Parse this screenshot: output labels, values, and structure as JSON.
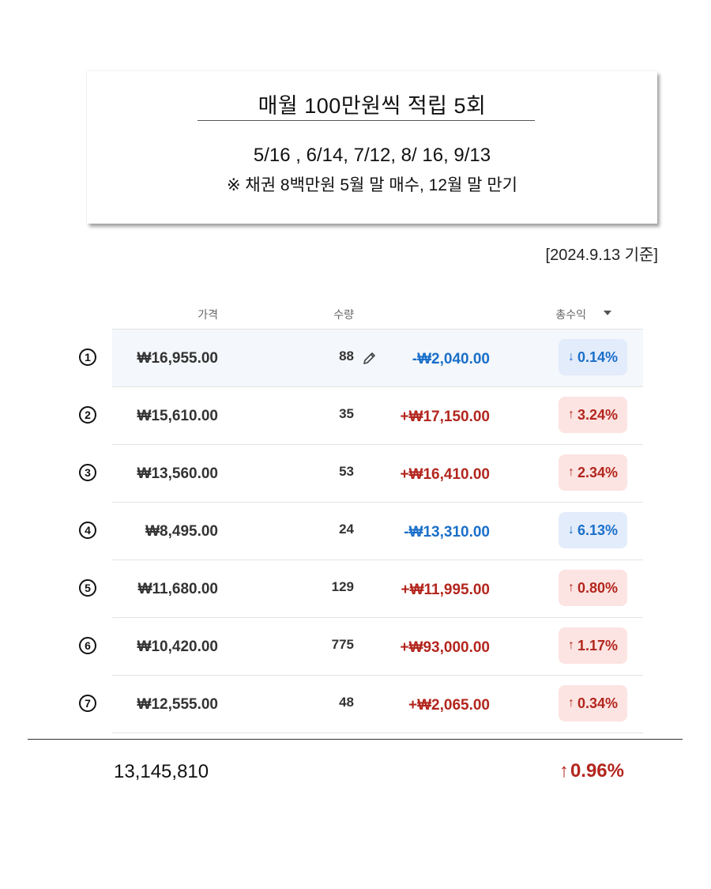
{
  "info": {
    "title": "매월 100만원씩 적립 5회",
    "dates": "5/16 , 6/14, 7/12, 8/ 16, 9/13",
    "note": "※ 채권 8백만원 5월 말 매수, 12월 말 만기"
  },
  "as_of": "[2024.9.13 기준]",
  "table": {
    "headers": {
      "price": "가격",
      "qty": "수량",
      "total_gain": "총수익"
    },
    "rows": [
      {
        "marker": "1",
        "price": "₩16,955.00",
        "qty": "88",
        "gain": "-₩2,040.00",
        "direction": "down",
        "pct": "0.14%",
        "editable": true
      },
      {
        "marker": "2",
        "price": "₩15,610.00",
        "qty": "35",
        "gain": "+₩17,150.00",
        "direction": "up",
        "pct": "3.24%"
      },
      {
        "marker": "3",
        "price": "₩13,560.00",
        "qty": "53",
        "gain": "+₩16,410.00",
        "direction": "up",
        "pct": "2.34%"
      },
      {
        "marker": "4",
        "price": "₩8,495.00",
        "qty": "24",
        "gain": "-₩13,310.00",
        "direction": "down",
        "pct": "6.13%"
      },
      {
        "marker": "5",
        "price": "₩11,680.00",
        "qty": "129",
        "gain": "+₩11,995.00",
        "direction": "up",
        "pct": "0.80%"
      },
      {
        "marker": "6",
        "price": "₩10,420.00",
        "qty": "775",
        "gain": "+₩93,000.00",
        "direction": "up",
        "pct": "1.17%"
      },
      {
        "marker": "7",
        "price": "₩12,555.00",
        "qty": "48",
        "gain": "+₩2,065.00",
        "direction": "up",
        "pct": "0.34%"
      }
    ]
  },
  "total": {
    "amount": "13,145,810",
    "pct": "0.96%",
    "direction": "up"
  },
  "colors": {
    "up": "#b3261e",
    "down": "#1a6fc9",
    "up_bg": "#fce4e2",
    "down_bg": "#e3ecfb"
  },
  "icons": {
    "edit": "pencil-icon",
    "sort": "caret-down-icon",
    "up": "arrow-up-icon",
    "down": "arrow-down-icon"
  }
}
